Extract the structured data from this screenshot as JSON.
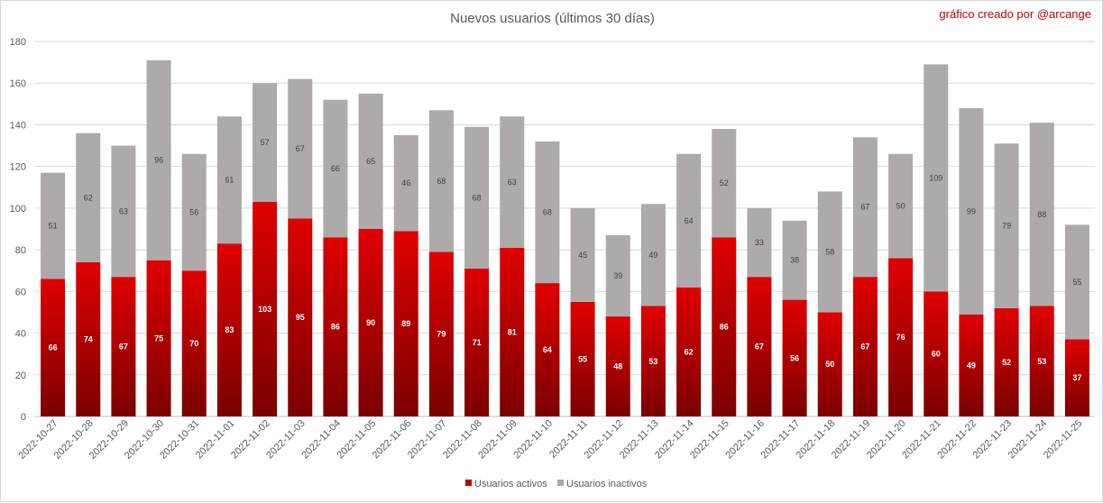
{
  "chart_data": {
    "type": "bar",
    "stacked": true,
    "title": "Nuevos usuarios (últimos 30 días)",
    "credit": "gráfico creado por @arcange",
    "ylim": [
      0,
      180
    ],
    "yticks": [
      0,
      20,
      40,
      60,
      80,
      100,
      120,
      140,
      160,
      180
    ],
    "grid": true,
    "legend_position": "bottom",
    "categories": [
      "2022-10-27",
      "2022-10-28",
      "2022-10-29",
      "2022-10-30",
      "2022-10-31",
      "2022-11-01",
      "2022-11-02",
      "2022-11-03",
      "2022-11-04",
      "2022-11-05",
      "2022-11-06",
      "2022-11-07",
      "2022-11-08",
      "2022-11-09",
      "2022-11-10",
      "2022-11-11",
      "2022-11-12",
      "2022-11-13",
      "2022-11-14",
      "2022-11-15",
      "2022-11-16",
      "2022-11-17",
      "2022-11-18",
      "2022-11-19",
      "2022-11-20",
      "2022-11-21",
      "2022-11-22",
      "2022-11-23",
      "2022-11-24",
      "2022-11-25"
    ],
    "series": [
      {
        "name": "Usuarios activos",
        "color": "#c00000",
        "values": [
          66,
          74,
          67,
          75,
          70,
          83,
          103,
          95,
          86,
          90,
          89,
          79,
          71,
          81,
          64,
          55,
          48,
          53,
          62,
          86,
          67,
          56,
          50,
          67,
          76,
          60,
          49,
          52,
          53,
          37
        ]
      },
      {
        "name": "Usuarios inactivos",
        "color": "#aeaaaa",
        "values": [
          51,
          62,
          63,
          96,
          56,
          61,
          57,
          67,
          66,
          65,
          46,
          68,
          68,
          63,
          68,
          45,
          39,
          49,
          64,
          52,
          33,
          38,
          58,
          67,
          50,
          109,
          99,
          79,
          88,
          55
        ]
      }
    ]
  }
}
